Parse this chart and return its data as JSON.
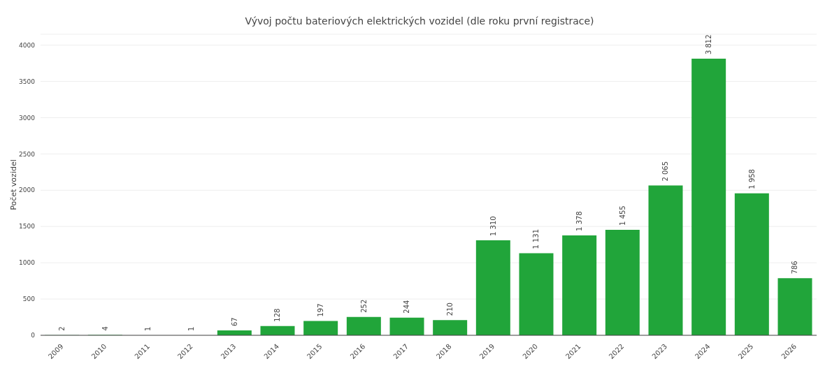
{
  "chart_data": {
    "type": "bar",
    "title": "Vývoj počtu bateriových elektrických vozidel (dle roku první registrace)",
    "ylabel": "Počet vozidel",
    "categories": [
      "2009",
      "2010",
      "2011",
      "2012",
      "2013",
      "2014",
      "2015",
      "2016",
      "2017",
      "2018",
      "2019",
      "2020",
      "2021",
      "2022",
      "2023",
      "2024",
      "2025",
      "2026"
    ],
    "values": [
      2,
      4,
      1,
      1,
      67,
      128,
      197,
      252,
      244,
      210,
      1310,
      1131,
      1378,
      1455,
      2065,
      3812,
      1958,
      786
    ],
    "value_labels": [
      "2",
      "4",
      "1",
      "1",
      "67",
      "128",
      "197",
      "252",
      "244",
      "210",
      "1 310",
      "1 131",
      "1 378",
      "1 455",
      "2 065",
      "3 812",
      "1 958",
      "786"
    ],
    "color": "#21a53a",
    "ylim": [
      0,
      4150
    ],
    "yticks": [
      0,
      500,
      1000,
      1500,
      2000,
      2500,
      3000,
      3500,
      4000
    ],
    "grid": "y"
  }
}
